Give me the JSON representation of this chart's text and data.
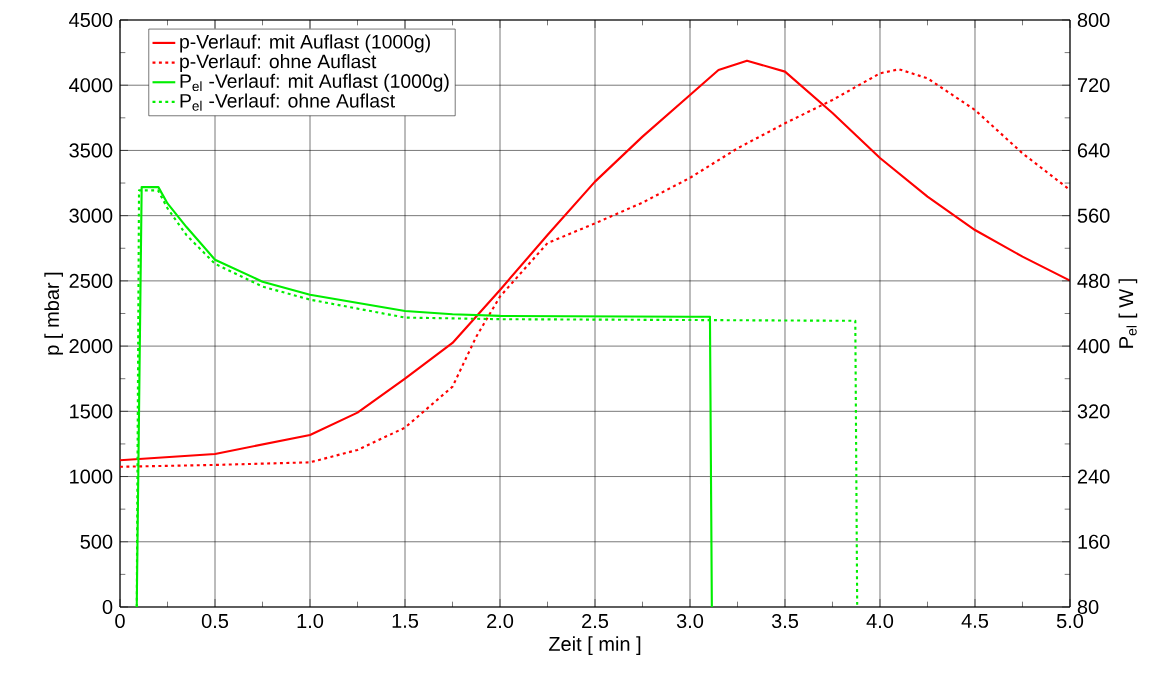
{
  "chart_data": {
    "type": "line",
    "xlabel": "Zeit [ min ]",
    "ylabel": "p [ mbar ]",
    "y2label": "P$_{el}$ [ W ]",
    "xlim": [
      0,
      5
    ],
    "xticks": [
      0,
      0.5,
      {
        "value": 1,
        "label": "1.0"
      },
      1.5,
      {
        "value": 2,
        "label": "2.0"
      },
      2.5,
      {
        "value": 3,
        "label": "3.0"
      },
      3.5,
      {
        "value": 4,
        "label": "4.0"
      },
      4.5,
      {
        "value": 5,
        "label": "5.0"
      }
    ],
    "ylim": [
      0,
      4500
    ],
    "yticks": [
      0,
      500,
      1000,
      1500,
      2000,
      2500,
      3000,
      3500,
      4000,
      4500
    ],
    "y2lim": [
      80,
      800
    ],
    "y2ticks": [
      80,
      160,
      240,
      320,
      400,
      480,
      560,
      640,
      720,
      800
    ],
    "grid": true,
    "legend": "top left",
    "series": [
      {
        "name": "p-Verlauf: mit Auflast (1000g)",
        "color": "#ff0000",
        "line_style": "solid",
        "x": [
          0,
          0.5,
          1.0,
          1.25,
          1.5,
          1.75,
          2.0,
          2.25,
          2.5,
          2.75,
          3.0,
          3.15,
          3.3,
          3.5,
          3.75,
          4.0,
          4.25,
          4.5,
          4.75,
          5.0
        ],
        "values": [
          1125,
          1173,
          1319,
          1490,
          1750,
          2024,
          2430,
          2852,
          3261,
          3606,
          3925,
          4117,
          4188,
          4104,
          3787,
          3442,
          3146,
          2890,
          2686,
          2502
        ]
      },
      {
        "name": "p-Verlauf: ohne Auflast",
        "color": "#ff0000",
        "line_style": "dotted",
        "x": [
          0,
          0.5,
          1.0,
          1.25,
          1.5,
          1.75,
          1.875,
          2.0,
          2.25,
          2.5,
          2.75,
          3.0,
          3.25,
          3.5,
          3.75,
          4.0,
          4.1,
          4.25,
          4.5,
          4.75,
          5.0
        ],
        "values": [
          1075,
          1089,
          1109,
          1204,
          1375,
          1689,
          2072,
          2380,
          2790,
          2941,
          3100,
          3290,
          3516,
          3708,
          3887,
          4091,
          4122,
          4053,
          3810,
          3478,
          3197
        ]
      },
      {
        "name": "P$_{el}$ -Verlauf: mit Auflast (1000g)",
        "color": "#00ee00",
        "line_style": "solid",
        "axis": "y2",
        "x": [
          0.088,
          0.114,
          0.202,
          0.25,
          0.35,
          0.5,
          0.75,
          1.0,
          1.5,
          1.75,
          2.0,
          3.0,
          3.105,
          3.115
        ],
        "values": [
          80,
          595,
          595,
          575,
          546,
          506,
          479,
          463,
          443,
          439,
          437,
          436,
          436,
          80
        ]
      },
      {
        "name": "P$_{el}$ -Verlauf: ohne Auflast",
        "color": "#00ee00",
        "line_style": "dotted",
        "axis": "y2",
        "x": [
          0.088,
          0.1,
          0.2,
          0.25,
          0.35,
          0.5,
          0.75,
          1.0,
          1.5,
          2.0,
          3.0,
          3.87,
          3.88
        ],
        "values": [
          80,
          591,
          591,
          569,
          536,
          501,
          473,
          457,
          435,
          433,
          432,
          431,
          80
        ]
      }
    ]
  }
}
